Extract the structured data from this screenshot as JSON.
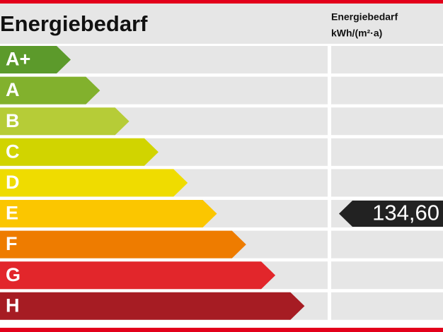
{
  "header": {
    "title": "Energiebedarf",
    "column_title": "Energiebedarf",
    "column_unit": "kWh/(m²·a)"
  },
  "classes": [
    {
      "label": "A+",
      "color": "#5c9a2b"
    },
    {
      "label": "A",
      "color": "#82b12d"
    },
    {
      "label": "B",
      "color": "#b6cc37"
    },
    {
      "label": "C",
      "color": "#d1d400"
    },
    {
      "label": "D",
      "color": "#efdc00"
    },
    {
      "label": "E",
      "color": "#fbc600"
    },
    {
      "label": "F",
      "color": "#ee7c00"
    },
    {
      "label": "G",
      "color": "#e2262b"
    },
    {
      "label": "H",
      "color": "#a61c23"
    }
  ],
  "marker": {
    "value": "134,60"
  }
}
